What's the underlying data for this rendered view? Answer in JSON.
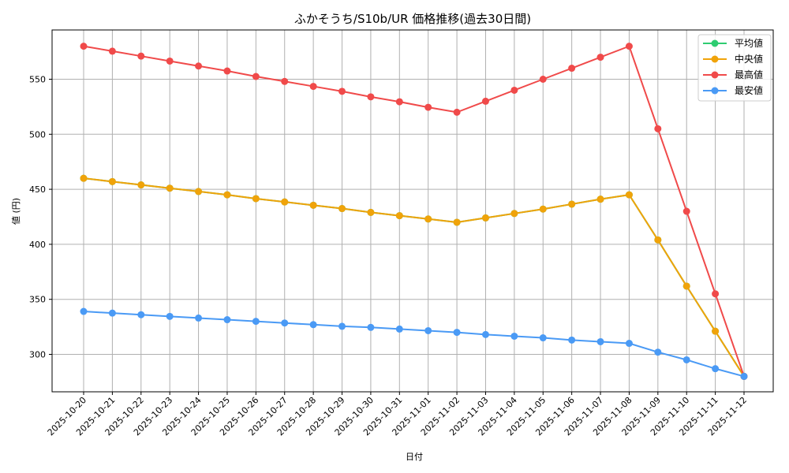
{
  "chart_data": {
    "type": "line",
    "title": "ふかそうち/S10b/UR 価格推移(過去30日間)",
    "xlabel": "日付",
    "ylabel": "値 (円)",
    "ylim": [
      265,
      594
    ],
    "yticks": [
      300,
      350,
      400,
      450,
      500,
      550
    ],
    "grid": true,
    "legend_position": "upper right",
    "categories": [
      "2025-10-20",
      "2025-10-21",
      "2025-10-22",
      "2025-10-23",
      "2025-10-24",
      "2025-10-25",
      "2025-10-26",
      "2025-10-27",
      "2025-10-28",
      "2025-10-29",
      "2025-10-30",
      "2025-10-31",
      "2025-11-01",
      "2025-11-02",
      "2025-11-03",
      "2025-11-04",
      "2025-11-05",
      "2025-11-06",
      "2025-11-07",
      "2025-11-08",
      "2025-11-09",
      "2025-11-10",
      "2025-11-11",
      "2025-11-12"
    ],
    "series": [
      {
        "name": "平均値",
        "color": "#2ecc71",
        "values": [
          460,
          457,
          454,
          451,
          448,
          445,
          441.5,
          438.5,
          435.5,
          432.5,
          429,
          426,
          423,
          420,
          424,
          428,
          432,
          436.5,
          441,
          445,
          404,
          362,
          321,
          280
        ]
      },
      {
        "name": "中央値",
        "color": "#f0a30a",
        "values": [
          460,
          457,
          454,
          451,
          448,
          445,
          441.5,
          438.5,
          435.5,
          432.5,
          429,
          426,
          423,
          420,
          424,
          428,
          432,
          436.5,
          441,
          445,
          404,
          362,
          321,
          280
        ]
      },
      {
        "name": "最高値",
        "color": "#f04a4a",
        "values": [
          580,
          575.5,
          571,
          566.5,
          562,
          557.5,
          552.5,
          548,
          543.5,
          539,
          534,
          529.5,
          524.5,
          520,
          530,
          540,
          550,
          560,
          570,
          580,
          505,
          430,
          355,
          280
        ]
      },
      {
        "name": "最安値",
        "color": "#4a9af5",
        "values": [
          339,
          337.5,
          336,
          334.5,
          333,
          331.5,
          330,
          328.5,
          327,
          325.5,
          324.5,
          323,
          321.5,
          320,
          318,
          316.5,
          315,
          313,
          311.5,
          310,
          302,
          295,
          287,
          280
        ]
      }
    ]
  }
}
